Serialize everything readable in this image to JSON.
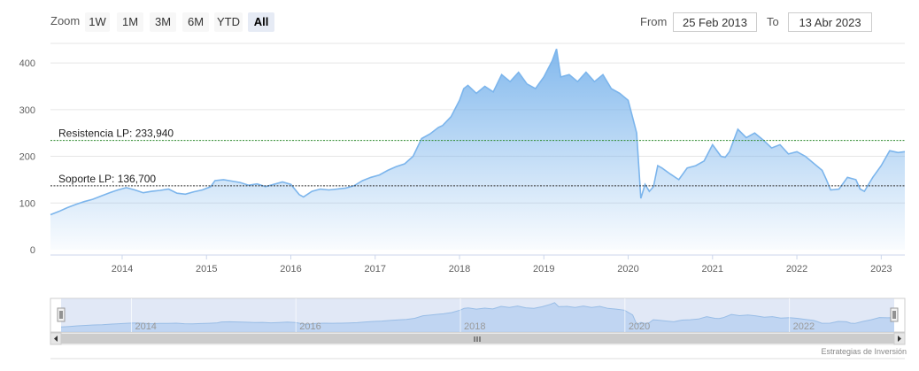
{
  "range_selector": {
    "zoom_label": "Zoom",
    "buttons": [
      "1W",
      "1M",
      "3M",
      "6M",
      "YTD",
      "All"
    ],
    "active": "All",
    "from_label": "From",
    "from_value": "25 Feb 2013",
    "to_label": "To",
    "to_value": "13 Abr 2023"
  },
  "credits": "Estrategias de Inversión",
  "colors": {
    "line": "#7cb5ec",
    "area_top": "#7cb5ec",
    "resistance_line": "#2e8b2e",
    "support_line": "#333333",
    "navigator_mask": "#c9d5ee"
  },
  "chart_data": {
    "type": "area",
    "ylim": [
      0,
      440
    ],
    "xlim": [
      2013.15,
      2023.28
    ],
    "y_ticks": [
      "0",
      "100",
      "200",
      "300",
      "400"
    ],
    "y_tick_values": [
      0,
      100,
      200,
      300,
      400
    ],
    "x_ticks": [
      "2014",
      "2015",
      "2016",
      "2017",
      "2018",
      "2019",
      "2020",
      "2021",
      "2022",
      "2023"
    ],
    "x_tick_values": [
      2014,
      2015,
      2016,
      2017,
      2018,
      2019,
      2020,
      2021,
      2022,
      2023
    ],
    "x": [
      2013.15,
      2013.25,
      2013.35,
      2013.45,
      2013.55,
      2013.65,
      2013.75,
      2013.85,
      2013.95,
      2014.05,
      2014.15,
      2014.25,
      2014.35,
      2014.45,
      2014.55,
      2014.65,
      2014.75,
      2014.85,
      2014.95,
      2015.05,
      2015.1,
      2015.2,
      2015.3,
      2015.4,
      2015.5,
      2015.6,
      2015.7,
      2015.8,
      2015.9,
      2016.0,
      2016.1,
      2016.15,
      2016.25,
      2016.35,
      2016.45,
      2016.55,
      2016.65,
      2016.75,
      2016.85,
      2016.95,
      2017.05,
      2017.15,
      2017.25,
      2017.35,
      2017.45,
      2017.55,
      2017.65,
      2017.75,
      2017.8,
      2017.9,
      2018.0,
      2018.05,
      2018.1,
      2018.2,
      2018.3,
      2018.4,
      2018.5,
      2018.6,
      2018.7,
      2018.8,
      2018.9,
      2019.0,
      2019.1,
      2019.15,
      2019.2,
      2019.3,
      2019.4,
      2019.5,
      2019.6,
      2019.7,
      2019.8,
      2019.9,
      2020.0,
      2020.1,
      2020.15,
      2020.2,
      2020.25,
      2020.3,
      2020.35,
      2020.4,
      2020.5,
      2020.6,
      2020.7,
      2020.8,
      2020.9,
      2021.0,
      2021.1,
      2021.15,
      2021.2,
      2021.3,
      2021.4,
      2021.5,
      2021.6,
      2021.7,
      2021.8,
      2021.9,
      2022.0,
      2022.1,
      2022.2,
      2022.3,
      2022.35,
      2022.4,
      2022.5,
      2022.6,
      2022.7,
      2022.75,
      2022.8,
      2022.9,
      2023.0,
      2023.1,
      2023.2,
      2023.28
    ],
    "values": [
      75,
      82,
      90,
      97,
      103,
      108,
      115,
      122,
      128,
      133,
      128,
      122,
      125,
      127,
      130,
      121,
      119,
      124,
      128,
      135,
      148,
      150,
      147,
      144,
      138,
      141,
      135,
      140,
      145,
      140,
      118,
      113,
      125,
      130,
      128,
      130,
      132,
      137,
      148,
      155,
      160,
      170,
      178,
      184,
      200,
      238,
      248,
      262,
      266,
      285,
      320,
      345,
      352,
      335,
      350,
      338,
      375,
      360,
      380,
      355,
      345,
      370,
      405,
      430,
      370,
      375,
      360,
      380,
      360,
      375,
      345,
      335,
      320,
      250,
      110,
      140,
      125,
      135,
      180,
      175,
      162,
      150,
      175,
      180,
      190,
      225,
      200,
      198,
      210,
      258,
      240,
      250,
      235,
      218,
      225,
      205,
      210,
      200,
      185,
      170,
      150,
      128,
      130,
      155,
      150,
      130,
      125,
      155,
      180,
      212,
      208,
      210
    ],
    "resistance": {
      "label": "Resistencia LP: 233,940",
      "value": 233.94
    },
    "support": {
      "label": "Soporte LP: 136,700",
      "value": 136.7
    },
    "navigator": {
      "x_ticks": [
        "2014",
        "2016",
        "2018",
        "2020",
        "2022"
      ],
      "x_tick_values": [
        2014,
        2016,
        2018,
        2020,
        2022
      ]
    }
  }
}
